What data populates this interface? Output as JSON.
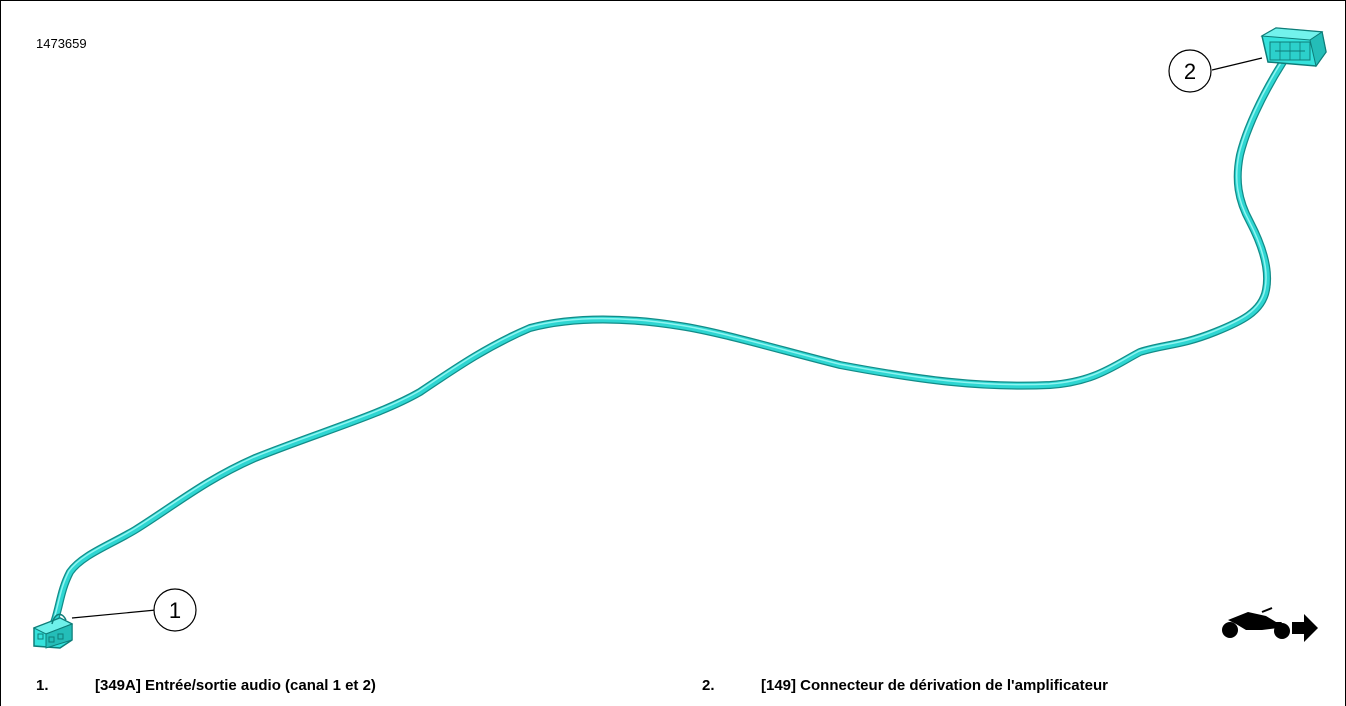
{
  "figure": {
    "id": "1473659"
  },
  "callouts": [
    {
      "number": "1"
    },
    {
      "number": "2"
    }
  ],
  "legend": [
    {
      "number": "1.",
      "text": "[349A] Entrée/sortie audio (canal 1 et 2)"
    },
    {
      "number": "2.",
      "text": "[149] Connecteur de dérivation de l'amplificateur"
    }
  ],
  "colors": {
    "cable": "#2ed6d2",
    "cable_dark": "#128c88",
    "connector": "#35e2dc",
    "frame": "#000000"
  },
  "icons": {
    "orientation": "motorcycle-forward-icon"
  }
}
